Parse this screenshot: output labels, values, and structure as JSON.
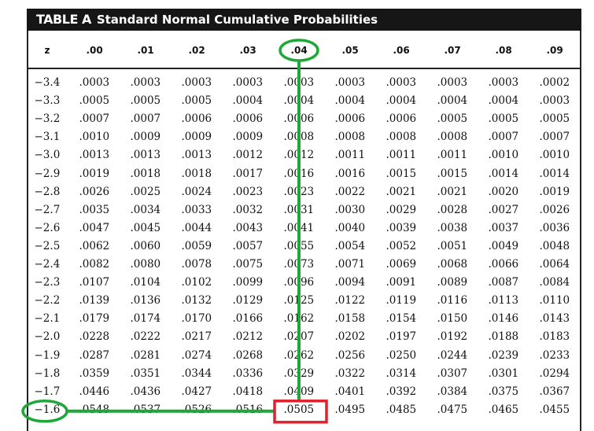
{
  "table": {
    "label": "TABLE A",
    "name": "Standard Normal Cumulative Probabilities",
    "row_header": "z",
    "columns": [
      ".00",
      ".01",
      ".02",
      ".03",
      ".04",
      ".05",
      ".06",
      ".07",
      ".08",
      ".09"
    ],
    "rows": [
      {
        "z": "−3.4",
        "values": [
          ".0003",
          ".0003",
          ".0003",
          ".0003",
          ".0003",
          ".0003",
          ".0003",
          ".0003",
          ".0003",
          ".0002"
        ]
      },
      {
        "z": "−3.3",
        "values": [
          ".0005",
          ".0005",
          ".0005",
          ".0004",
          ".0004",
          ".0004",
          ".0004",
          ".0004",
          ".0004",
          ".0003"
        ]
      },
      {
        "z": "−3.2",
        "values": [
          ".0007",
          ".0007",
          ".0006",
          ".0006",
          ".0006",
          ".0006",
          ".0006",
          ".0005",
          ".0005",
          ".0005"
        ]
      },
      {
        "z": "−3.1",
        "values": [
          ".0010",
          ".0009",
          ".0009",
          ".0009",
          ".0008",
          ".0008",
          ".0008",
          ".0008",
          ".0007",
          ".0007"
        ]
      },
      {
        "z": "−3.0",
        "values": [
          ".0013",
          ".0013",
          ".0013",
          ".0012",
          ".0012",
          ".0011",
          ".0011",
          ".0011",
          ".0010",
          ".0010"
        ]
      },
      {
        "z": "−2.9",
        "values": [
          ".0019",
          ".0018",
          ".0018",
          ".0017",
          ".0016",
          ".0016",
          ".0015",
          ".0015",
          ".0014",
          ".0014"
        ]
      },
      {
        "z": "−2.8",
        "values": [
          ".0026",
          ".0025",
          ".0024",
          ".0023",
          ".0023",
          ".0022",
          ".0021",
          ".0021",
          ".0020",
          ".0019"
        ]
      },
      {
        "z": "−2.7",
        "values": [
          ".0035",
          ".0034",
          ".0033",
          ".0032",
          ".0031",
          ".0030",
          ".0029",
          ".0028",
          ".0027",
          ".0026"
        ]
      },
      {
        "z": "−2.6",
        "values": [
          ".0047",
          ".0045",
          ".0044",
          ".0043",
          ".0041",
          ".0040",
          ".0039",
          ".0038",
          ".0037",
          ".0036"
        ]
      },
      {
        "z": "−2.5",
        "values": [
          ".0062",
          ".0060",
          ".0059",
          ".0057",
          ".0055",
          ".0054",
          ".0052",
          ".0051",
          ".0049",
          ".0048"
        ]
      },
      {
        "z": "−2.4",
        "values": [
          ".0082",
          ".0080",
          ".0078",
          ".0075",
          ".0073",
          ".0071",
          ".0069",
          ".0068",
          ".0066",
          ".0064"
        ]
      },
      {
        "z": "−2.3",
        "values": [
          ".0107",
          ".0104",
          ".0102",
          ".0099",
          ".0096",
          ".0094",
          ".0091",
          ".0089",
          ".0087",
          ".0084"
        ]
      },
      {
        "z": "−2.2",
        "values": [
          ".0139",
          ".0136",
          ".0132",
          ".0129",
          ".0125",
          ".0122",
          ".0119",
          ".0116",
          ".0113",
          ".0110"
        ]
      },
      {
        "z": "−2.1",
        "values": [
          ".0179",
          ".0174",
          ".0170",
          ".0166",
          ".0162",
          ".0158",
          ".0154",
          ".0150",
          ".0146",
          ".0143"
        ]
      },
      {
        "z": "−2.0",
        "values": [
          ".0228",
          ".0222",
          ".0217",
          ".0212",
          ".0207",
          ".0202",
          ".0197",
          ".0192",
          ".0188",
          ".0183"
        ]
      },
      {
        "z": "−1.9",
        "values": [
          ".0287",
          ".0281",
          ".0274",
          ".0268",
          ".0262",
          ".0256",
          ".0250",
          ".0244",
          ".0239",
          ".0233"
        ]
      },
      {
        "z": "−1.8",
        "values": [
          ".0359",
          ".0351",
          ".0344",
          ".0336",
          ".0329",
          ".0322",
          ".0314",
          ".0307",
          ".0301",
          ".0294"
        ]
      },
      {
        "z": "−1.7",
        "values": [
          ".0446",
          ".0436",
          ".0427",
          ".0418",
          ".0409",
          ".0401",
          ".0392",
          ".0384",
          ".0375",
          ".0367"
        ]
      },
      {
        "z": "−1.6",
        "values": [
          ".0548",
          ".0537",
          ".0526",
          ".0516",
          ".0505",
          ".0495",
          ".0485",
          ".0475",
          ".0465",
          ".0455"
        ]
      }
    ]
  },
  "annotations": {
    "highlight_row": 18,
    "highlight_col": 4,
    "circle_color": "#1fa83a",
    "box_color": "#e0202a"
  }
}
